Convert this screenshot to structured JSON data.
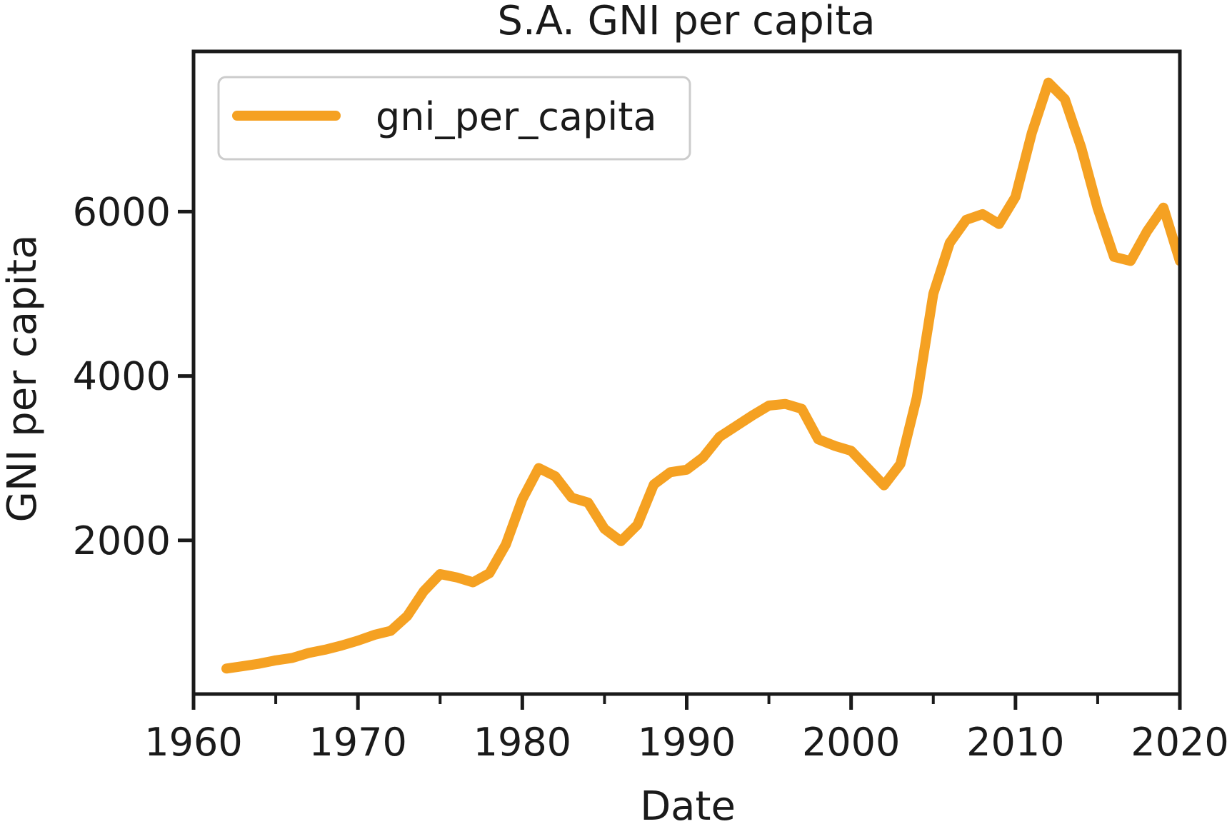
{
  "chart_data": {
    "type": "line",
    "title": "S.A. GNI per capita",
    "xlabel": "Date",
    "ylabel": "GNI per capita",
    "xlim": [
      1960,
      2020
    ],
    "ylim": [
      130,
      7950
    ],
    "x_ticks": [
      1960,
      1970,
      1980,
      1990,
      2000,
      2010,
      2020
    ],
    "x_minor_ticks": [
      1965,
      1975,
      1985,
      1995,
      2005,
      2015
    ],
    "y_ticks": [
      2000,
      4000,
      6000
    ],
    "grid": false,
    "legend": {
      "position": "top-left"
    },
    "series": [
      {
        "name": "gni_per_capita",
        "color": "#F5A122",
        "x": [
          1962,
          1963,
          1964,
          1965,
          1966,
          1967,
          1968,
          1969,
          1970,
          1971,
          1972,
          1973,
          1974,
          1975,
          1976,
          1977,
          1978,
          1979,
          1980,
          1981,
          1982,
          1983,
          1984,
          1985,
          1986,
          1987,
          1988,
          1989,
          1990,
          1991,
          1992,
          1993,
          1994,
          1995,
          1996,
          1997,
          1998,
          1999,
          2000,
          2001,
          2002,
          2003,
          2004,
          2005,
          2006,
          2007,
          2008,
          2009,
          2010,
          2011,
          2012,
          2013,
          2014,
          2015,
          2016,
          2017,
          2018,
          2019,
          2020
        ],
        "values": [
          440,
          470,
          500,
          540,
          570,
          630,
          670,
          720,
          780,
          850,
          900,
          1080,
          1380,
          1590,
          1550,
          1490,
          1600,
          1950,
          2500,
          2880,
          2780,
          2520,
          2460,
          2140,
          1990,
          2190,
          2680,
          2830,
          2860,
          3010,
          3260,
          3390,
          3520,
          3640,
          3660,
          3600,
          3230,
          3150,
          3090,
          2880,
          2670,
          2930,
          3740,
          5000,
          5620,
          5900,
          5970,
          5850,
          6180,
          6960,
          7570,
          7370,
          6780,
          6040,
          5450,
          5400,
          5760,
          6050,
          5400
        ]
      }
    ]
  }
}
